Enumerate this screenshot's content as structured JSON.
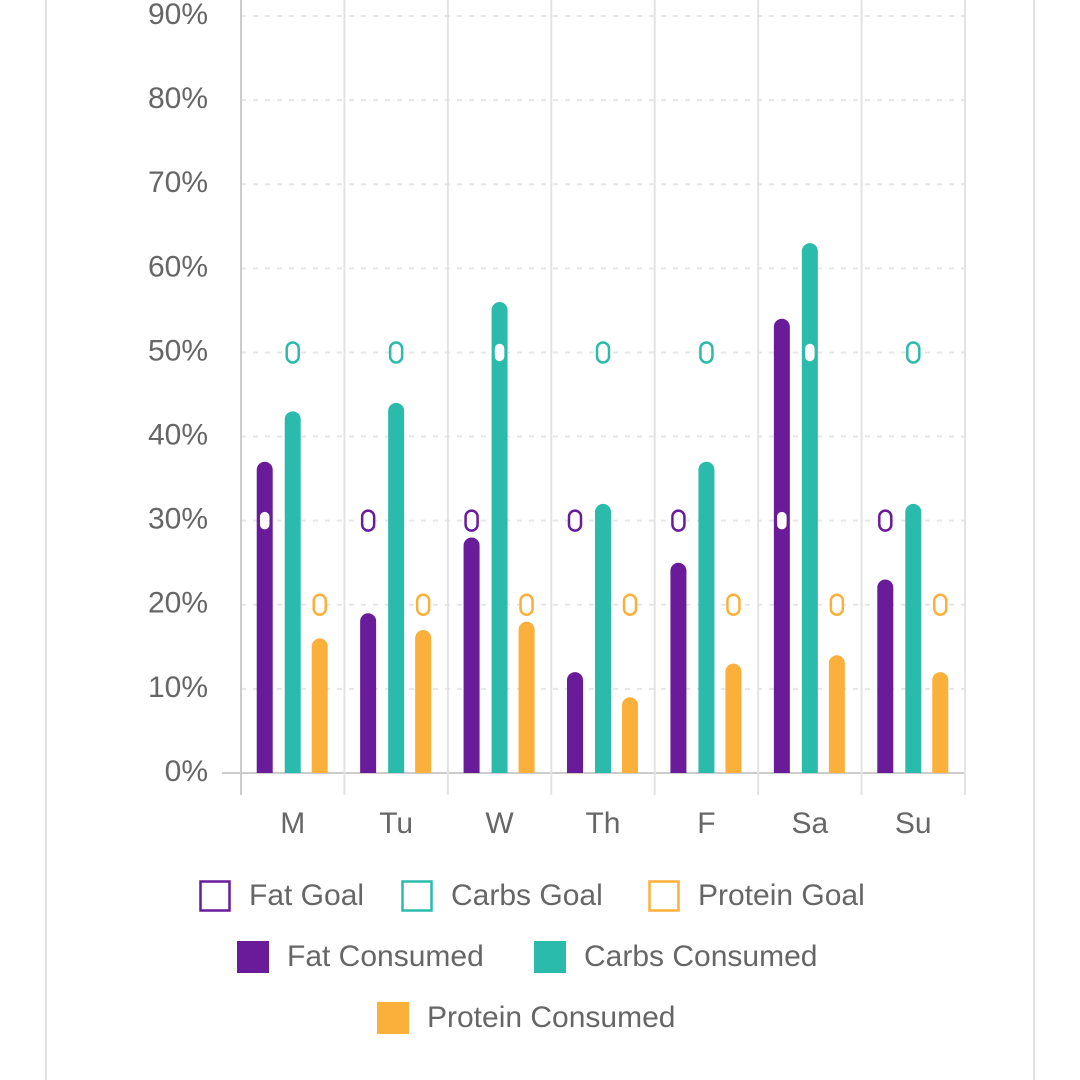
{
  "chart_data": {
    "type": "bar",
    "categories": [
      "M",
      "Tu",
      "W",
      "Th",
      "F",
      "Sa",
      "Su"
    ],
    "ylim": [
      0,
      90
    ],
    "yticks": [
      {
        "value": 0,
        "label": "0%"
      },
      {
        "value": 10,
        "label": "10%"
      },
      {
        "value": 20,
        "label": "20%"
      },
      {
        "value": 30,
        "label": "30%"
      },
      {
        "value": 40,
        "label": "40%"
      },
      {
        "value": 50,
        "label": "50%"
      },
      {
        "value": 60,
        "label": "60%"
      },
      {
        "value": 70,
        "label": "70%"
      },
      {
        "value": 80,
        "label": "80%"
      },
      {
        "value": 90,
        "label": "90%"
      }
    ],
    "grid": true,
    "series": [
      {
        "name": "Fat Goal",
        "color": "#6a1b9a",
        "marker": "goal",
        "slot": 0,
        "values": [
          30,
          30,
          30,
          30,
          30,
          30,
          30
        ]
      },
      {
        "name": "Carbs Goal",
        "color": "#2bbbad",
        "marker": "goal",
        "slot": 1,
        "values": [
          50,
          50,
          50,
          50,
          50,
          50,
          50
        ]
      },
      {
        "name": "Protein Goal",
        "color": "#fbb03b",
        "marker": "goal",
        "slot": 2,
        "values": [
          20,
          20,
          20,
          20,
          20,
          20,
          20
        ]
      },
      {
        "name": "Fat Consumed",
        "color": "#6a1b9a",
        "marker": "bar",
        "slot": 0,
        "values": [
          37,
          19,
          28,
          12,
          25,
          54,
          23
        ]
      },
      {
        "name": "Carbs Consumed",
        "color": "#2bbbad",
        "marker": "bar",
        "slot": 1,
        "values": [
          43,
          44,
          56,
          32,
          37,
          63,
          32
        ]
      },
      {
        "name": "Protein Consumed",
        "color": "#fbb03b",
        "marker": "bar",
        "slot": 2,
        "values": [
          16,
          17,
          18,
          9,
          13,
          14,
          12
        ]
      }
    ]
  }
}
